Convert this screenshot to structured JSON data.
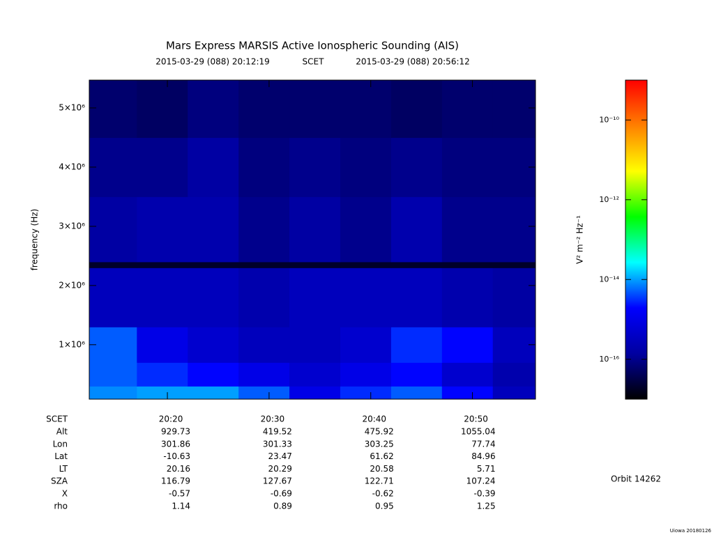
{
  "chart_data": {
    "type": "heatmap",
    "title": "Mars Express MARSIS Active Ionospheric Sounding (AIS)",
    "start_label": "2015-03-29 (088) 20:12:19",
    "time_label": "SCET",
    "end_label": "2015-03-29 (088) 20:56:12",
    "y_label": "frequency (Hz)",
    "colorbar_label": "V² m⁻² Hz⁻¹",
    "xlim": [
      "20:12:19",
      "20:56:12"
    ],
    "xticks": [
      "20:20",
      "20:30",
      "20:40",
      "20:50"
    ],
    "ylim": [
      80000,
      5470000
    ],
    "yticks": [
      {
        "value": 1000000,
        "label": "1×10⁶"
      },
      {
        "value": 2000000,
        "label": "2×10⁶"
      },
      {
        "value": 3000000,
        "label": "3×10⁶"
      },
      {
        "value": 4000000,
        "label": "4×10⁶"
      },
      {
        "value": 5000000,
        "label": "5×10⁶"
      }
    ],
    "zlim": [
      1e-17,
      1e-09
    ],
    "zlog": true,
    "zticks": [
      {
        "value": 1e-10,
        "label": "10⁻¹⁰"
      },
      {
        "value": 1e-12,
        "label": "10⁻¹²"
      },
      {
        "value": 1e-14,
        "label": "10⁻¹⁴"
      },
      {
        "value": 1e-16,
        "label": "10⁻¹⁶"
      }
    ],
    "colorscale": [
      "#000000",
      "#0000a0",
      "#0000ff",
      "#00ffff",
      "#00ff00",
      "#ffff00",
      "#ff8000",
      "#ff0000"
    ],
    "xbins": [
      "20:12:19",
      "20:17",
      "20:22",
      "20:27",
      "20:32",
      "20:37",
      "20:42",
      "20:47",
      "20:52",
      "20:56:12"
    ],
    "ybins": [
      80000,
      300000,
      700000,
      1300000,
      2300000,
      2400000,
      3500000,
      4500000,
      5470000
    ],
    "z": [
      [
        8e-15,
        1e-14,
        1e-14,
        5e-15,
        1e-15,
        3e-15,
        5e-15,
        2e-15,
        3e-16
      ],
      [
        5e-15,
        3e-15,
        2e-15,
        1e-15,
        5e-16,
        1e-15,
        2e-15,
        5e-16,
        2e-16
      ],
      [
        5e-15,
        1e-15,
        5e-16,
        3e-16,
        3e-16,
        5e-16,
        3e-15,
        2e-15,
        3e-16
      ],
      [
        3e-16,
        3e-16,
        3e-16,
        2e-16,
        3e-16,
        3e-16,
        3e-16,
        2e-16,
        1.5e-16
      ],
      [
        2e-17,
        2e-17,
        2e-17,
        2e-17,
        2e-17,
        2e-17,
        2e-17,
        2e-17,
        2e-17
      ],
      [
        1.5e-16,
        2e-16,
        2e-16,
        1e-16,
        1.5e-16,
        1e-16,
        2e-16,
        1e-16,
        1e-16
      ],
      [
        1e-16,
        1e-16,
        1.5e-16,
        8e-17,
        1e-16,
        8e-17,
        1e-16,
        8e-17,
        8e-17
      ],
      [
        6e-17,
        5e-17,
        8e-17,
        6e-17,
        6e-17,
        6e-17,
        5e-17,
        6e-17,
        6e-17
      ]
    ],
    "ephemeris": [
      {
        "label": "Alt",
        "values": [
          929.73,
          419.52,
          475.92,
          1055.04
        ]
      },
      {
        "label": "Lon",
        "values": [
          301.86,
          301.33,
          303.25,
          77.74
        ]
      },
      {
        "label": "Lat",
        "values": [
          -10.63,
          23.47,
          61.62,
          84.96
        ]
      },
      {
        "label": "LT",
        "values": [
          20.16,
          20.29,
          20.58,
          5.71
        ]
      },
      {
        "label": "SZA",
        "values": [
          116.79,
          127.67,
          122.71,
          107.24
        ]
      },
      {
        "label": "X",
        "values": [
          -0.57,
          -0.69,
          -0.62,
          -0.39
        ]
      },
      {
        "label": "rho",
        "values": [
          1.14,
          0.89,
          0.95,
          1.25
        ]
      }
    ],
    "orbit_label": "Orbit 14262",
    "credit": "Uiowa 20180126"
  }
}
